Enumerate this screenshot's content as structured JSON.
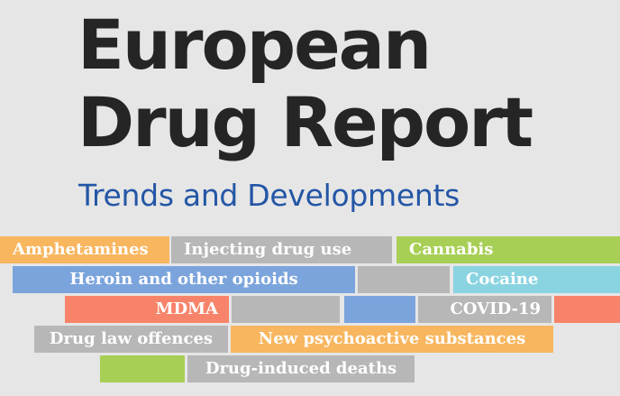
{
  "cover": {
    "title_line1": "European",
    "title_line2": "Drug Report",
    "subtitle": "Trends and Developments"
  },
  "topics": {
    "amphetamines": "Amphetamines",
    "injecting": "Injecting drug use",
    "cannabis": "Cannabis",
    "heroin": "Heroin and other opioids",
    "cocaine": "Cocaine",
    "mdma": "MDMA",
    "covid": "COVID-19",
    "drug_law": "Drug law offences",
    "nps": "New psychoactive substances",
    "deaths": "Drug-induced deaths"
  },
  "colors": {
    "orange": "#f8b65f",
    "grey": "#b7b7b7",
    "green": "#a8cf55",
    "blue": "#7ca4dc",
    "cyan": "#8ad4e1",
    "salmon": "#f7846a",
    "title": "#252525",
    "subtitle": "#2456a6",
    "background": "#e6e6e6"
  }
}
